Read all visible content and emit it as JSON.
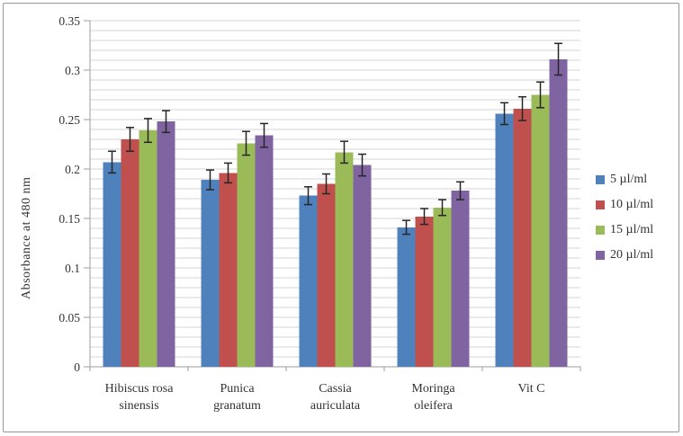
{
  "figure": {
    "background": "#ffffff",
    "border_color": "#979797"
  },
  "chart_data": {
    "type": "bar",
    "title": "",
    "xlabel": "",
    "ylabel": "Absorbance at 480 nm",
    "ylim": [
      0,
      0.35
    ],
    "y_major_tick_step": 0.05,
    "y_minor_grid_step": 0.01,
    "grid": "minor-horizontal-lines",
    "legend_position": "right",
    "y_tick_labels": [
      "0",
      "0.05",
      "0.1",
      "0.15",
      "0.2",
      "0.25",
      "0.3",
      "0.35"
    ],
    "categories": [
      "Hibiscus rosa sinensis",
      "Punica granatum",
      "Cassia auriculata",
      "Moringa oleifera",
      "Vit C"
    ],
    "category_lines": [
      [
        "Hibiscus rosa",
        "sinensis"
      ],
      [
        "Punica",
        "granatum"
      ],
      [
        "Cassia",
        "auriculata"
      ],
      [
        "Moringa",
        "oleifera"
      ],
      [
        "Vit C"
      ]
    ],
    "series": [
      {
        "name": "5 µl/ml",
        "color": "#4F81BD",
        "values": [
          0.207,
          0.189,
          0.173,
          0.141,
          0.256
        ],
        "errors": [
          0.011,
          0.01,
          0.009,
          0.007,
          0.011
        ]
      },
      {
        "name": "10 µl/ml",
        "color": "#C0504D",
        "values": [
          0.23,
          0.196,
          0.185,
          0.152,
          0.261
        ],
        "errors": [
          0.012,
          0.01,
          0.01,
          0.008,
          0.012
        ]
      },
      {
        "name": "15 µl/ml",
        "color": "#9BBB59",
        "values": [
          0.239,
          0.226,
          0.217,
          0.161,
          0.275
        ],
        "errors": [
          0.012,
          0.012,
          0.011,
          0.008,
          0.013
        ]
      },
      {
        "name": "20 µl/ml",
        "color": "#8064A2",
        "values": [
          0.248,
          0.234,
          0.204,
          0.178,
          0.311
        ],
        "errors": [
          0.011,
          0.012,
          0.011,
          0.009,
          0.016
        ]
      }
    ],
    "style": {
      "gridline_color": "#d4d4d4",
      "axis_color": "#9c9c9c",
      "error_bar_color": "#262626",
      "text_color": "#333333"
    }
  }
}
